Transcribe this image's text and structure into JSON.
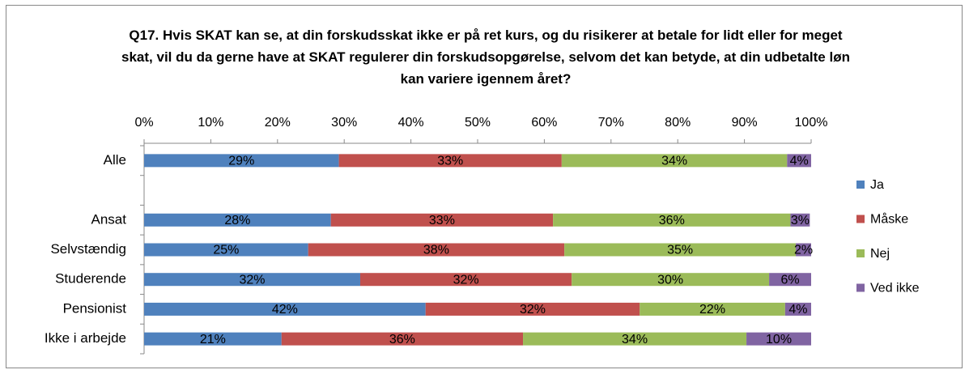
{
  "chart_data": {
    "type": "stacked_barh",
    "title": "Q17. Hvis SKAT kan se, at din forskudsskat ikke er på ret kurs, og du risikerer at betale for lidt eller for meget skat, vil du da gerne have at SKAT regulerer din forskudsopgørelse, selvom det kan betyde, at din udbetalte løn kan variere igennem året?",
    "categories": [
      "Alle",
      null,
      "Ansat",
      "Selvstændig",
      "Studerende",
      "Pensionist",
      "Ikke i arbejde"
    ],
    "series": [
      {
        "name": "Ja",
        "color": "#4f81bd",
        "values": [
          29.2,
          null,
          28.0,
          24.6,
          32.4,
          42.2,
          20.6
        ],
        "value_labels": [
          "29%",
          null,
          "28%",
          "25%",
          "32%",
          "42%",
          "21%"
        ]
      },
      {
        "name": "Måske",
        "color": "#c0504d",
        "values": [
          33.4,
          null,
          33.3,
          38.4,
          31.7,
          32.1,
          36.2
        ],
        "value_labels": [
          "33%",
          null,
          "33%",
          "38%",
          "32%",
          "32%",
          "36%"
        ]
      },
      {
        "name": "Nej",
        "color": "#9bbb59",
        "values": [
          33.8,
          null,
          35.6,
          34.7,
          29.6,
          21.8,
          33.5
        ],
        "value_labels": [
          "34%",
          null,
          "36%",
          "35%",
          "30%",
          "22%",
          "34%"
        ]
      },
      {
        "name": "Ved ikke",
        "color": "#8064a2",
        "values": [
          3.6,
          null,
          2.9,
          2.3,
          6.3,
          3.9,
          9.7
        ],
        "value_labels": [
          "4%",
          null,
          "3%",
          "2%",
          "6%",
          "4%",
          "10%"
        ]
      }
    ],
    "xlim": [
      0,
      100
    ],
    "xticks": [
      {
        "value": 0,
        "label": "0%"
      },
      {
        "value": 10,
        "label": "10%"
      },
      {
        "value": 20,
        "label": "20%"
      },
      {
        "value": 30,
        "label": "30%"
      },
      {
        "value": 40,
        "label": "40%"
      },
      {
        "value": 50,
        "label": "50%"
      },
      {
        "value": 60,
        "label": "60%"
      },
      {
        "value": 70,
        "label": "70%"
      },
      {
        "value": 80,
        "label": "80%"
      },
      {
        "value": 90,
        "label": "90%"
      },
      {
        "value": 100,
        "label": "100%"
      }
    ],
    "legend": "right"
  }
}
